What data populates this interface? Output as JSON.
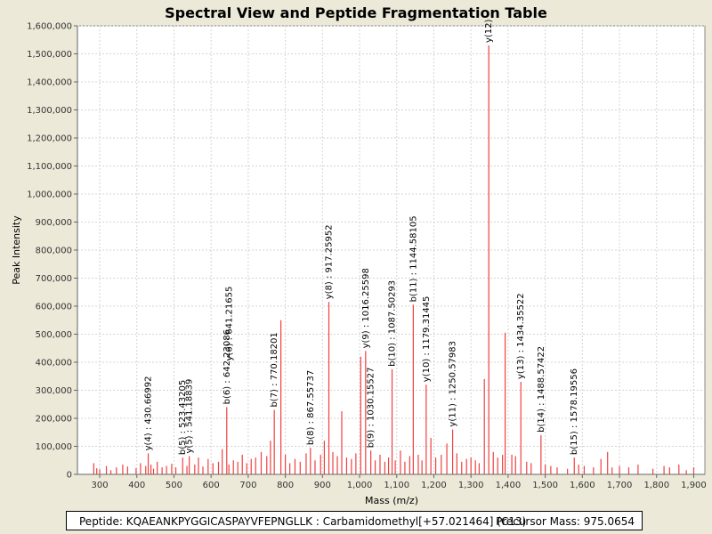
{
  "chart_data": {
    "type": "bar",
    "title": "Spectral View and Peptide Fragmentation Table",
    "xlabel": "Mass (m/z)",
    "ylabel": "Peak Intensity",
    "xlim": [
      240,
      1930
    ],
    "ylim": [
      0,
      1600000
    ],
    "x_ticks": [
      300,
      400,
      500,
      600,
      700,
      800,
      900,
      1000,
      1100,
      1200,
      1300,
      1400,
      1500,
      1600,
      1700,
      1800,
      1900
    ],
    "x_tick_labels": [
      "300",
      "400",
      "500",
      "600",
      "700",
      "800",
      "900",
      "1,000",
      "1,100",
      "1,200",
      "1,300",
      "1,400",
      "1,500",
      "1,600",
      "1,700",
      "1,800",
      "1,900"
    ],
    "y_ticks": [
      0,
      100000,
      200000,
      300000,
      400000,
      500000,
      600000,
      700000,
      800000,
      900000,
      1000000,
      1100000,
      1200000,
      1300000,
      1400000,
      1500000,
      1600000
    ],
    "y_tick_labels": [
      "0",
      "100,000",
      "200,000",
      "300,000",
      "400,000",
      "500,000",
      "600,000",
      "700,000",
      "800,000",
      "900,000",
      "1,000,000",
      "1,100,000",
      "1,200,000",
      "1,300,000",
      "1,400,000",
      "1,500,000",
      "1,600,000"
    ],
    "grid": true,
    "series": [
      {
        "name": "peaks",
        "mz": [
          284,
          292,
          300,
          318,
          330,
          345,
          362,
          375,
          398,
          410,
          424,
          430.67,
          438,
          445,
          455,
          468,
          480,
          494,
          505,
          523.43,
          535,
          541.18,
          556,
          566,
          578,
          592,
          605,
          620,
          630,
          642.23,
          648,
          660,
          672,
          684,
          696,
          708,
          720,
          735,
          750,
          760,
          770.18,
          788,
          800,
          812,
          826,
          840,
          856,
          867.56,
          880,
          895,
          905,
          917.26,
          928,
          940,
          952,
          965,
          978,
          990,
          1003,
          1016.26,
          1030.16,
          1042,
          1055,
          1068,
          1078,
          1087.5,
          1096,
          1110,
          1122,
          1135,
          1144.58,
          1158,
          1168,
          1179.31,
          1192,
          1205,
          1220,
          1235,
          1250.58,
          1262,
          1275,
          1288,
          1300,
          1312,
          1322,
          1336,
          1348,
          1360,
          1372,
          1385,
          1392,
          1410,
          1420,
          1434.36,
          1450,
          1462,
          1488.57,
          1500,
          1515,
          1532,
          1560,
          1578.2,
          1590,
          1605,
          1630,
          1650,
          1668,
          1680,
          1700,
          1725,
          1750,
          1790,
          1820,
          1835,
          1860,
          1880,
          1900
        ],
        "intensity": [
          40000,
          22000,
          18000,
          30000,
          15000,
          25000,
          35000,
          28000,
          22000,
          40000,
          30000,
          75000,
          35000,
          20000,
          45000,
          25000,
          30000,
          38000,
          25000,
          60000,
          30000,
          65000,
          35000,
          60000,
          28000,
          55000,
          40000,
          45000,
          90000,
          240000,
          35000,
          50000,
          45000,
          70000,
          40000,
          55000,
          60000,
          80000,
          65000,
          120000,
          230000,
          550000,
          70000,
          40000,
          55000,
          45000,
          75000,
          95000,
          50000,
          70000,
          120000,
          615000,
          80000,
          65000,
          225000,
          60000,
          55000,
          75000,
          420000,
          440000,
          85000,
          50000,
          70000,
          45000,
          60000,
          375000,
          50000,
          85000,
          45000,
          65000,
          605000,
          70000,
          50000,
          320000,
          130000,
          60000,
          70000,
          110000,
          160000,
          75000,
          45000,
          55000,
          60000,
          50000,
          40000,
          340000,
          1530000,
          80000,
          60000,
          70000,
          505000,
          70000,
          65000,
          330000,
          45000,
          40000,
          140000,
          35000,
          30000,
          25000,
          20000,
          60000,
          35000,
          30000,
          25000,
          55000,
          80000,
          25000,
          30000,
          25000,
          35000,
          20000,
          30000,
          25000,
          35000,
          15000,
          25000
        ]
      }
    ],
    "annotations": [
      {
        "text": "y(4) : 430.66992",
        "mz": 430.67,
        "intensity": 75000
      },
      {
        "text": "b(5) : 523.43205",
        "mz": 523.43,
        "intensity": 60000
      },
      {
        "text": "y(5) : 541.18839",
        "mz": 541.18,
        "intensity": 65000
      },
      {
        "text": "b(6) : 642.23086",
        "mz": 642.23,
        "intensity": 240000
      },
      {
        "text": "y(6) : 641.21655",
        "mz": 648.5,
        "intensity": 395000
      },
      {
        "text": "b(7) : 770.18201",
        "mz": 770.18,
        "intensity": 230000
      },
      {
        "text": "b(8) : 867.55737",
        "mz": 867.56,
        "intensity": 95000
      },
      {
        "text": "y(8) : 917.25952",
        "mz": 917.26,
        "intensity": 615000
      },
      {
        "text": "y(9) : 1016.25598",
        "mz": 1016.26,
        "intensity": 440000
      },
      {
        "text": "b(9) : 1030.15527",
        "mz": 1030.16,
        "intensity": 85000
      },
      {
        "text": "b(10) : 1087.50293",
        "mz": 1087.5,
        "intensity": 375000
      },
      {
        "text": "b(11) : 1144.58105",
        "mz": 1144.58,
        "intensity": 605000
      },
      {
        "text": "y(10) : 1179.31445",
        "mz": 1179.31,
        "intensity": 320000
      },
      {
        "text": "y(11) : 1250.57983",
        "mz": 1250.58,
        "intensity": 160000
      },
      {
        "text": "y(12)",
        "mz": 1348,
        "intensity": 1530000
      },
      {
        "text": "y(13) : 1434.35522",
        "mz": 1434.36,
        "intensity": 330000
      },
      {
        "text": "b(14) : 1488.57422",
        "mz": 1488.57,
        "intensity": 140000
      },
      {
        "text": "b(15) : 1578.19556",
        "mz": 1578.2,
        "intensity": 60000
      }
    ],
    "colors": {
      "peak": "#f04040",
      "grid": "#d4d4d4",
      "plot_bg": "#ffffff",
      "page_bg": "#ece9d8"
    }
  },
  "footer": {
    "peptide": "Peptide: KQAEANKPYGGICASPAYVFEPNGLLK : Carbamidomethyl[+57.021464] (C13)",
    "precursor": "Precursor Mass: 975.0654"
  }
}
